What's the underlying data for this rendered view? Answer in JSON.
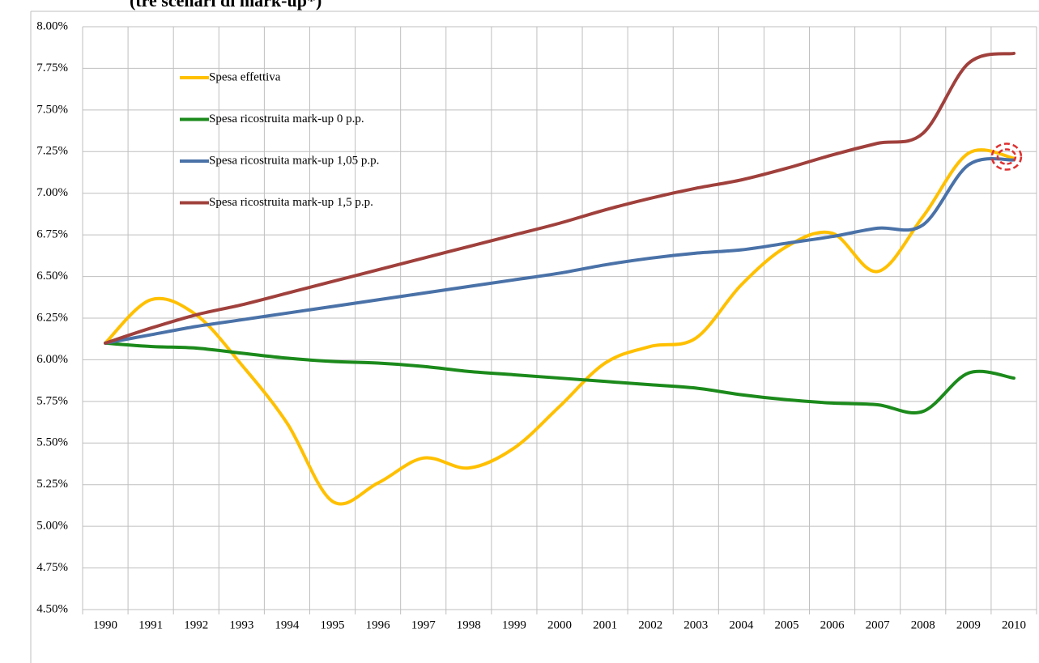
{
  "chart_data": {
    "type": "line",
    "title": "(tre scenari di mark-up*)",
    "categories": [
      "1990",
      "1991",
      "1992",
      "1993",
      "1994",
      "1995",
      "1996",
      "1997",
      "1998",
      "1999",
      "2000",
      "2001",
      "2002",
      "2003",
      "2004",
      "2005",
      "2006",
      "2007",
      "2008",
      "2009",
      "2010"
    ],
    "series": [
      {
        "name": "Spesa effettiva",
        "color": "#ffc000",
        "values": [
          6.1,
          6.36,
          6.27,
          5.97,
          5.62,
          5.15,
          5.26,
          5.41,
          5.35,
          5.47,
          5.72,
          5.98,
          6.08,
          6.13,
          6.45,
          6.68,
          6.76,
          6.53,
          6.86,
          7.24,
          7.21
        ]
      },
      {
        "name": "Spesa ricostruita mark-up 0 p.p.",
        "color": "#1b8a1b",
        "values": [
          6.1,
          6.08,
          6.07,
          6.04,
          6.01,
          5.99,
          5.98,
          5.96,
          5.93,
          5.91,
          5.89,
          5.87,
          5.85,
          5.83,
          5.79,
          5.76,
          5.74,
          5.73,
          5.69,
          5.92,
          5.89
        ]
      },
      {
        "name": "Spesa ricostruita mark-up 1,05 p.p.",
        "color": "#4a72a8",
        "values": [
          6.1,
          6.15,
          6.2,
          6.24,
          6.28,
          6.32,
          6.36,
          6.4,
          6.44,
          6.48,
          6.52,
          6.57,
          6.61,
          6.64,
          6.66,
          6.7,
          6.74,
          6.79,
          6.81,
          7.17,
          7.2
        ]
      },
      {
        "name": "Spesa ricostruita mark-up 1,5 p.p.",
        "color": "#a0403c",
        "values": [
          6.1,
          6.19,
          6.27,
          6.33,
          6.4,
          6.47,
          6.54,
          6.61,
          6.68,
          6.75,
          6.82,
          6.9,
          6.97,
          7.03,
          7.08,
          7.15,
          7.23,
          7.3,
          7.36,
          7.78,
          7.84
        ]
      }
    ],
    "ylim": [
      4.5,
      8.0
    ],
    "yticks": [
      {
        "value": 4.5,
        "label": "4.50%"
      },
      {
        "value": 4.75,
        "label": "4.75%"
      },
      {
        "value": 5.0,
        "label": "5.00%"
      },
      {
        "value": 5.25,
        "label": "5.25%"
      },
      {
        "value": 5.5,
        "label": "5.50%"
      },
      {
        "value": 5.75,
        "label": "5.75%"
      },
      {
        "value": 6.0,
        "label": "6.00%"
      },
      {
        "value": 6.25,
        "label": "6.25%"
      },
      {
        "value": 6.5,
        "label": "6.50%"
      },
      {
        "value": 6.75,
        "label": "6.75%"
      },
      {
        "value": 7.0,
        "label": "7.00%"
      },
      {
        "value": 7.25,
        "label": "7.25%"
      },
      {
        "value": 7.5,
        "label": "7.50%"
      },
      {
        "value": 7.75,
        "label": "7.75%"
      },
      {
        "value": 8.0,
        "label": "8.00%"
      }
    ],
    "grid": true,
    "legend": "upper-left"
  }
}
